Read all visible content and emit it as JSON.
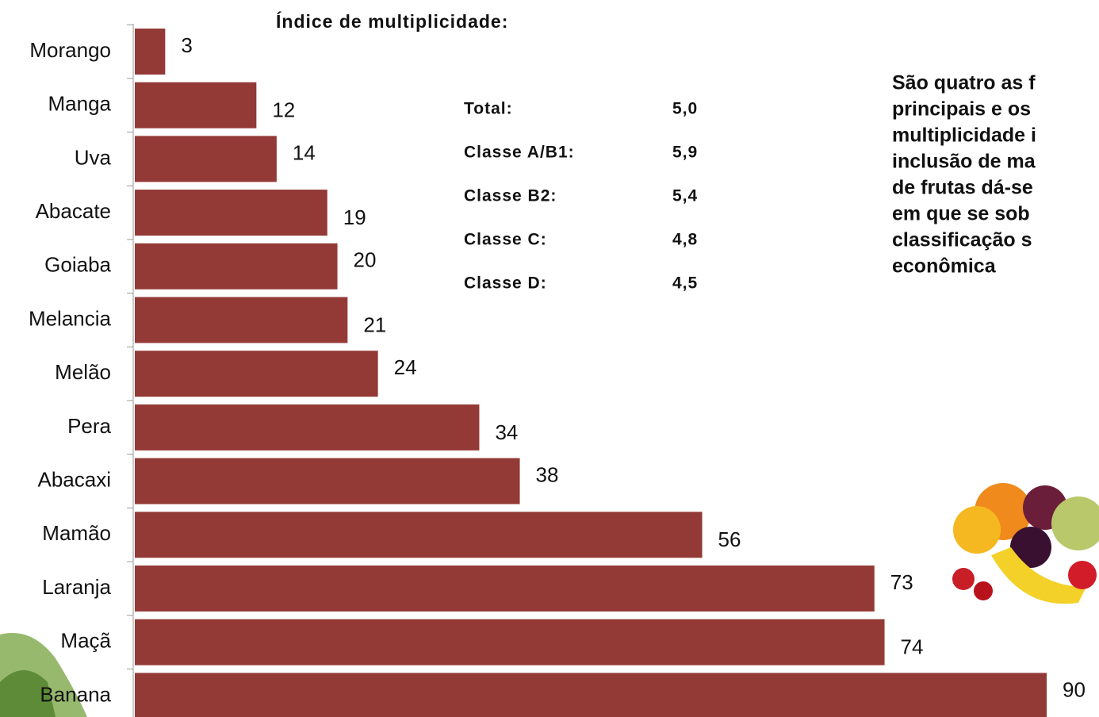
{
  "chart_data": {
    "type": "bar",
    "orientation": "horizontal",
    "title": "Índice de multiplicidade:",
    "categories": [
      "Morango",
      "Manga",
      "Uva",
      "Abacate",
      "Goiaba",
      "Melancia",
      "Melão",
      "Pera",
      "Abacaxi",
      "Mamão",
      "Laranja",
      "Maçã",
      "Banana"
    ],
    "values": [
      3,
      12,
      14,
      19,
      20,
      21,
      24,
      34,
      38,
      56,
      73,
      74,
      90
    ],
    "color": "#933a36",
    "stats": [
      {
        "label": "Total:",
        "value": "5,0"
      },
      {
        "label": "Classe A/B1:",
        "value": "5,9"
      },
      {
        "label": "Classe B2:",
        "value": "5,4"
      },
      {
        "label": "Classe C:",
        "value": "4,8"
      },
      {
        "label": "Classe D:",
        "value": "4,5"
      }
    ],
    "note_lines": [
      "São quatro as f",
      "principais e os",
      "multiplicidade i",
      "inclusão de ma",
      "de frutas dá-se",
      "em que se sob",
      "classificação s",
      "econômica"
    ]
  }
}
